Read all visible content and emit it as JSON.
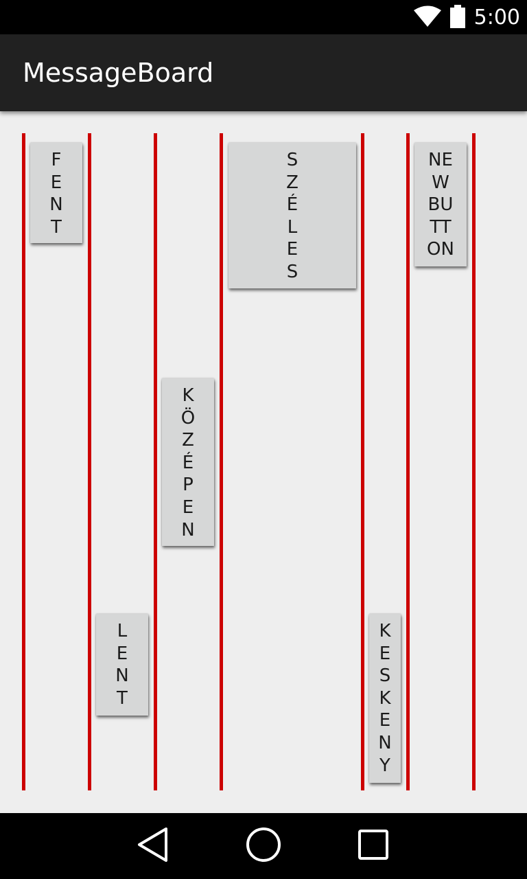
{
  "status_bar": {
    "time": "5:00",
    "icons": [
      "wifi-icon",
      "battery-icon"
    ]
  },
  "app_bar": {
    "title": "MessageBoard"
  },
  "buttons": {
    "fent": "F\nE\nN\nT",
    "lent": "L\nE\nN\nT",
    "kozepen": "K\nÖ\nZ\nÉ\nP\nE\nN",
    "szeles": "S\nZ\nÉ\nL\nE\nS",
    "keskeny": "K\nE\nS\nK\nE\nN\nY",
    "new_button": "NE\nW\nBU\nTT\nON"
  },
  "navigation": {
    "icons": [
      "back-icon",
      "home-icon",
      "recents-icon"
    ]
  },
  "colors": {
    "divider": "#cc0000",
    "button": "#d6d7d7",
    "app_bar": "#212121",
    "content_background": "#eeeeee"
  }
}
